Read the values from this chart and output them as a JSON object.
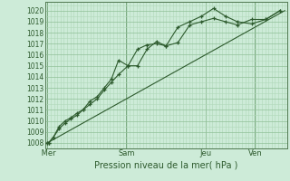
{
  "background_color": "#cdebd8",
  "grid_color_minor": "#b0d8b8",
  "grid_color_major": "#90c098",
  "line_color": "#2d5a2d",
  "axis_label": "Pression niveau de la mer( hPa )",
  "yticks": [
    1008,
    1009,
    1010,
    1011,
    1012,
    1013,
    1014,
    1015,
    1016,
    1017,
    1018,
    1019,
    1020
  ],
  "ylim": [
    1007.5,
    1020.8
  ],
  "day_labels": [
    " Mer",
    "Sam",
    "Jeu",
    "Ven"
  ],
  "day_positions": [
    0.0,
    0.333,
    0.667,
    0.875
  ],
  "xlim": [
    -0.01,
    1.01
  ],
  "series1_x": [
    0.0,
    0.005,
    0.025,
    0.05,
    0.075,
    0.1,
    0.125,
    0.15,
    0.18,
    0.21,
    0.24,
    0.27,
    0.3,
    0.34,
    0.38,
    0.42,
    0.46,
    0.5,
    0.55,
    0.6,
    0.65,
    0.7,
    0.75,
    0.8,
    0.86,
    0.92,
    0.98
  ],
  "series1_y": [
    1008,
    1008,
    1008.5,
    1009.5,
    1010,
    1010.3,
    1010.7,
    1011.0,
    1011.5,
    1012.0,
    1012.8,
    1013.5,
    1014.2,
    1015.0,
    1016.5,
    1016.9,
    1017.0,
    1016.8,
    1017.1,
    1018.7,
    1019.0,
    1019.3,
    1019.0,
    1018.7,
    1019.2,
    1019.2,
    1020.0
  ],
  "series2_x": [
    0.0,
    0.005,
    0.025,
    0.05,
    0.075,
    0.1,
    0.125,
    0.15,
    0.18,
    0.21,
    0.24,
    0.27,
    0.3,
    0.34,
    0.38,
    0.42,
    0.46,
    0.5,
    0.55,
    0.6,
    0.65,
    0.7,
    0.75,
    0.8,
    0.86,
    0.92,
    0.98
  ],
  "series2_y": [
    1008,
    1008,
    1008.5,
    1009.3,
    1009.8,
    1010.2,
    1010.5,
    1011.0,
    1011.8,
    1012.2,
    1013.0,
    1013.8,
    1015.5,
    1015.0,
    1015.0,
    1016.5,
    1017.2,
    1016.8,
    1018.5,
    1019.0,
    1019.5,
    1020.2,
    1019.5,
    1019.0,
    1018.8,
    1019.2,
    1020.0
  ],
  "series3_x": [
    0.0,
    1.0
  ],
  "series3_y": [
    1008,
    1020
  ]
}
